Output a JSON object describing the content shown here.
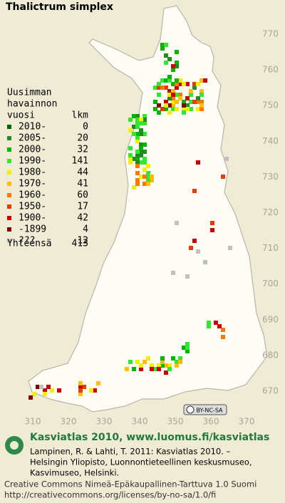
{
  "title": "Thalictrum simplex",
  "legend": {
    "heading": [
      "Uusimman",
      "havainnon",
      "vuosi"
    ],
    "count_heading": "lkm",
    "rows": [
      {
        "label": "2010-",
        "count": 0,
        "color": "#006400"
      },
      {
        "label": "2005-",
        "count": 20,
        "color": "#1e8c1e"
      },
      {
        "label": "2000-",
        "count": 32,
        "color": "#00b400"
      },
      {
        "label": "1990-",
        "count": 141,
        "color": "#32e632"
      },
      {
        "label": "1980-",
        "count": 44,
        "color": "#f0f000"
      },
      {
        "label": "1970-",
        "count": 41,
        "color": "#ffbe00"
      },
      {
        "label": "1960-",
        "count": 60,
        "color": "#ff7800"
      },
      {
        "label": "1950-",
        "count": 17,
        "color": "#e63c00"
      },
      {
        "label": "1900-",
        "count": 42,
        "color": "#c80000"
      },
      {
        "label": "-1899",
        "count": 4,
        "color": "#820000"
      },
      {
        "label": "???",
        "count": 12,
        "color": "#c0c0c0"
      }
    ],
    "total_label": "Yhteensä",
    "total": 413
  },
  "grid": {
    "y_labels": [
      "770",
      "760",
      "750",
      "740",
      "730",
      "720",
      "710",
      "700",
      "690",
      "680",
      "670"
    ],
    "x_labels": [
      "310",
      "320",
      "330",
      "340",
      "350",
      "360",
      "370"
    ]
  },
  "license_badge": "BY-NC-SA",
  "footer": {
    "site": "Kasviatlas 2010, www.luomus.fi/kasviatlas",
    "citation": [
      "Lampinen, R. & Lahti, T. 2011: Kasviatlas 2010. –",
      "Helsingin Yliopisto, Luonnontieteellinen keskusmuseo,",
      "Kasvimuseo, Helsinki."
    ],
    "license": [
      "Creative Commons Nimeä-Epäkaupallinen-Tarttuva 1.0 Suomi",
      "http://creativecommons.org/licenses/by-no-sa/1.0/fi"
    ]
  }
}
